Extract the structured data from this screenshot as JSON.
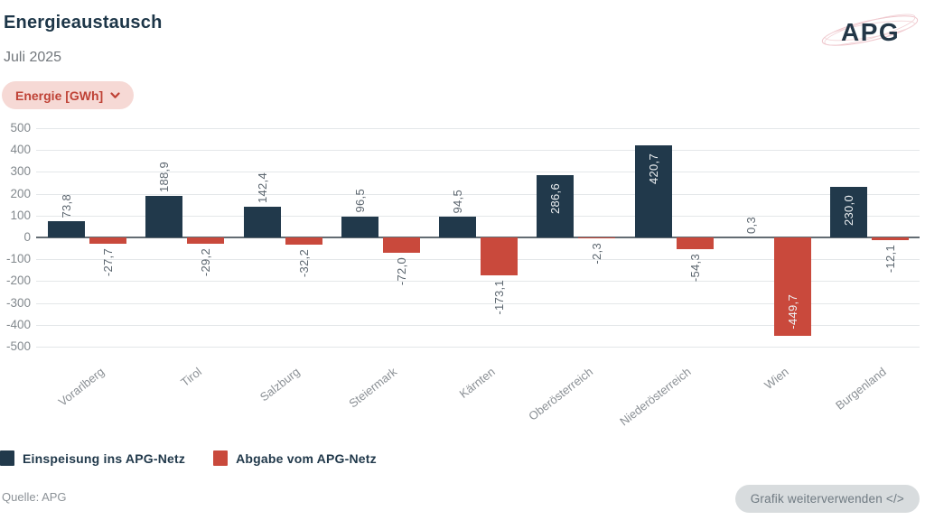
{
  "header": {
    "title": "Energieaustausch",
    "subtitle": "Juli 2025",
    "unit_selector_label": "Energie [GWh]",
    "logo_text": "APG"
  },
  "chart_data": {
    "type": "bar",
    "title": "Energieaustausch",
    "subtitle": "Juli 2025",
    "unit": "GWh",
    "categories": [
      "Vorarlberg",
      "Tirol",
      "Salzburg",
      "Steiermark",
      "Kärnten",
      "Oberösterreich",
      "Niederösterreich",
      "Wien",
      "Burgenland"
    ],
    "series": [
      {
        "name": "Einspeisung ins APG-Netz",
        "color": "#21394b",
        "values": [
          73.8,
          188.9,
          142.4,
          96.5,
          94.5,
          286.6,
          420.7,
          0.3,
          230.0
        ],
        "labels": [
          "73,8",
          "188,9",
          "142,4",
          "96,5",
          "94,5",
          "286,6",
          "420,7",
          "0,3",
          "230,0"
        ]
      },
      {
        "name": "Abgabe vom APG-Netz",
        "color": "#c9493c",
        "values": [
          -27.7,
          -29.2,
          -32.2,
          -72.0,
          -173.1,
          -2.3,
          -54.3,
          -449.7,
          -12.1
        ],
        "labels": [
          "-27,7",
          "-29,2",
          "-32,2",
          "-72,0",
          "-173,1",
          "-2,3",
          "-54,3",
          "-449,7",
          "-12,1"
        ]
      }
    ],
    "ylim": [
      -500,
      500
    ],
    "yticks": [
      500,
      400,
      300,
      200,
      100,
      0,
      -100,
      -200,
      -300,
      -400,
      -500
    ],
    "ytick_labels": [
      "500",
      "400",
      "300",
      "200",
      "100",
      "0",
      "-100",
      "-200",
      "-300",
      "-400",
      "-500"
    ],
    "grid": "horizontal",
    "legend_position": "bottom-left"
  },
  "legend": {
    "items": [
      {
        "label": "Einspeisung ins APG-Netz",
        "color": "#21394b"
      },
      {
        "label": "Abgabe vom APG-Netz",
        "color": "#c9493c"
      }
    ]
  },
  "footer": {
    "source": "Quelle: APG",
    "reuse_button_label": "Grafik weiterverwenden </>"
  }
}
